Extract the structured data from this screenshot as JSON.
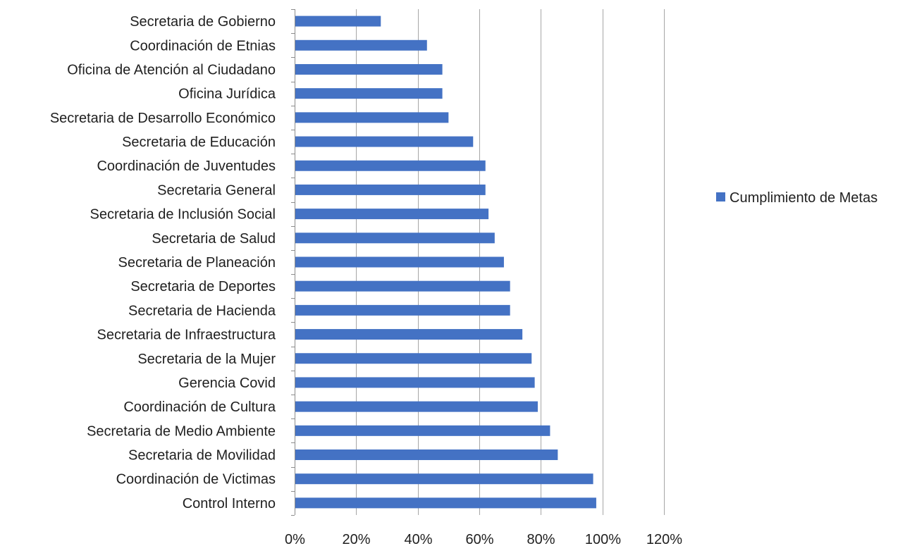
{
  "chart_data": {
    "type": "bar",
    "orientation": "horizontal",
    "categories": [
      "Secretaria de Gobierno",
      "Coordinación de Etnias",
      "Oficina de Atención al Ciudadano",
      "Oficina Jurídica",
      "Secretaria de Desarrollo Económico",
      "Secretaria de Educación",
      "Coordinación de Juventudes",
      "Secretaria General",
      "Secretaria de Inclusión Social",
      "Secretaria de Salud",
      "Secretaria de Planeación",
      "Secretaria de Deportes",
      "Secretaria de Hacienda",
      "Secretaria de Infraestructura",
      "Secretaria de la Mujer",
      "Gerencia Covid",
      "Coordinación de Cultura",
      "Secretaria de Medio Ambiente",
      "Secretaria de Movilidad",
      "Coordinación de Victimas",
      "Control Interno"
    ],
    "series": [
      {
        "name": "Cumplimiento de Metas",
        "color": "#4472C4",
        "values": [
          0.28,
          0.43,
          0.48,
          0.48,
          0.5,
          0.58,
          0.62,
          0.62,
          0.63,
          0.65,
          0.68,
          0.7,
          0.7,
          0.74,
          0.77,
          0.78,
          0.79,
          0.83,
          0.855,
          0.97,
          0.98
        ]
      }
    ],
    "xlim": [
      0,
      1.2
    ],
    "xticks": [
      "0%",
      "20%",
      "40%",
      "60%",
      "80%",
      "100%",
      "120%"
    ],
    "grid": true,
    "legend": "right"
  }
}
